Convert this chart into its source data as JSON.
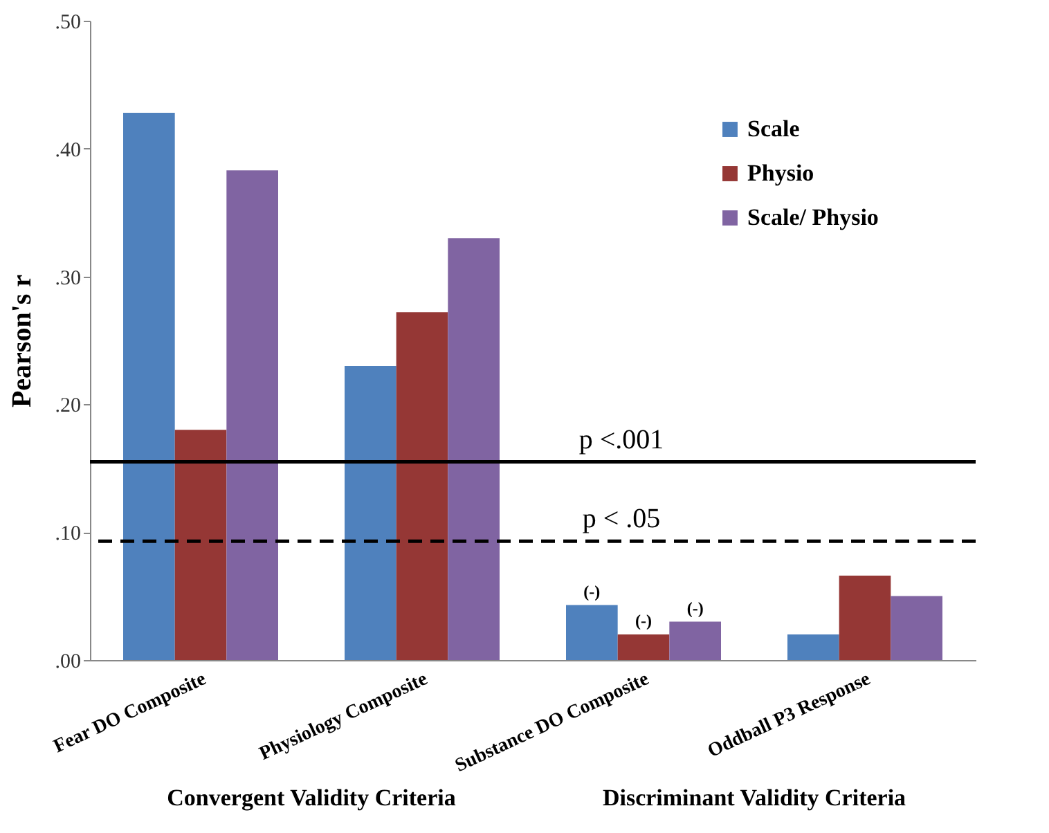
{
  "chart_data": {
    "type": "bar",
    "categories": [
      "Fear DO Composite",
      "Physiology Composite",
      "Substance DO Composite",
      "Oddball P3 Response"
    ],
    "series": [
      {
        "name": "Scale",
        "color": "#4f81bd",
        "values": [
          0.428,
          0.23,
          0.043,
          0.02
        ],
        "value_labels": [
          null,
          null,
          "(-)",
          null
        ]
      },
      {
        "name": "Physio",
        "color": "#953735",
        "values": [
          0.18,
          0.272,
          0.02,
          0.066
        ],
        "value_labels": [
          null,
          null,
          "(-)",
          null
        ]
      },
      {
        "name": "Scale/ Physio",
        "color": "#8064a2",
        "values": [
          0.383,
          0.33,
          0.03,
          0.05
        ],
        "value_labels": [
          null,
          null,
          "(-)",
          null
        ]
      }
    ],
    "ylabel": "Pearson's r",
    "ylim": [
      0,
      0.5
    ],
    "yticks": [
      {
        "value": 0,
        "label": ".00"
      },
      {
        "value": 0.1,
        "label": ".10"
      },
      {
        "value": 0.2,
        "label": ".20"
      },
      {
        "value": 0.3,
        "label": ".30"
      },
      {
        "value": 0.4,
        "label": ".40"
      },
      {
        "value": 0.5,
        "label": ".50"
      }
    ],
    "ref_lines": [
      {
        "axis": "y",
        "value": 0.155,
        "label": "p <.001",
        "color": "#000000",
        "line_style": "solid"
      },
      {
        "axis": "y",
        "value": 0.093,
        "label": "p < .05",
        "color": "#000000",
        "line_style": "dashed"
      }
    ],
    "annotations": [
      "Convergent Validity Criteria",
      "Discriminant Validity Criteria"
    ],
    "legend": "top right",
    "grid": false
  }
}
